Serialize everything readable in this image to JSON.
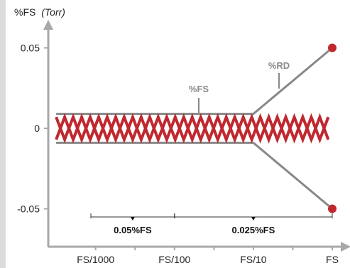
{
  "chart_data": {
    "type": "line",
    "title": "",
    "ylabel": "%FS",
    "ylabel_unit": "(Torr)",
    "xlabel": "",
    "x_categories": [
      "FS/1000",
      "FS/100",
      "FS/10",
      "FS"
    ],
    "y_ticks": [
      {
        "label": "0.05",
        "value": 0.05
      },
      {
        "label": "0",
        "value": 0
      },
      {
        "label": "-0.05",
        "value": -0.05
      }
    ],
    "ylim": [
      -0.065,
      0.07
    ],
    "series": [
      {
        "name": "",
        "role": "upper-limit",
        "color": "#888888",
        "points": [
          [
            -3.5,
            0.009
          ],
          [
            -1.0,
            0.009
          ],
          [
            0.0,
            0.05
          ]
        ]
      },
      {
        "name": "",
        "role": "lower-limit",
        "color": "#888888",
        "points": [
          [
            -3.5,
            -0.009
          ],
          [
            -1.0,
            -0.009
          ],
          [
            0.0,
            -0.05
          ]
        ]
      }
    ],
    "measurement": {
      "color": "#c0282f",
      "x_start": -3.5,
      "x_end": -0.05,
      "amplitude": 0.007,
      "cycles": 16
    },
    "endpoints": {
      "x": 0.0,
      "values": [
        0.05,
        -0.05
      ],
      "color": "#c0282f"
    },
    "annotations": [
      {
        "text": "%FS",
        "target": "flat section"
      },
      {
        "text": "%RD",
        "target": "sloped section"
      }
    ],
    "ranges": [
      {
        "label": "0.05%FS",
        "from": -3.5,
        "to": -2.0
      },
      {
        "label": "0.025%FS",
        "from": -2.0,
        "to": 0.0
      }
    ],
    "grid": false,
    "legend": "none"
  }
}
